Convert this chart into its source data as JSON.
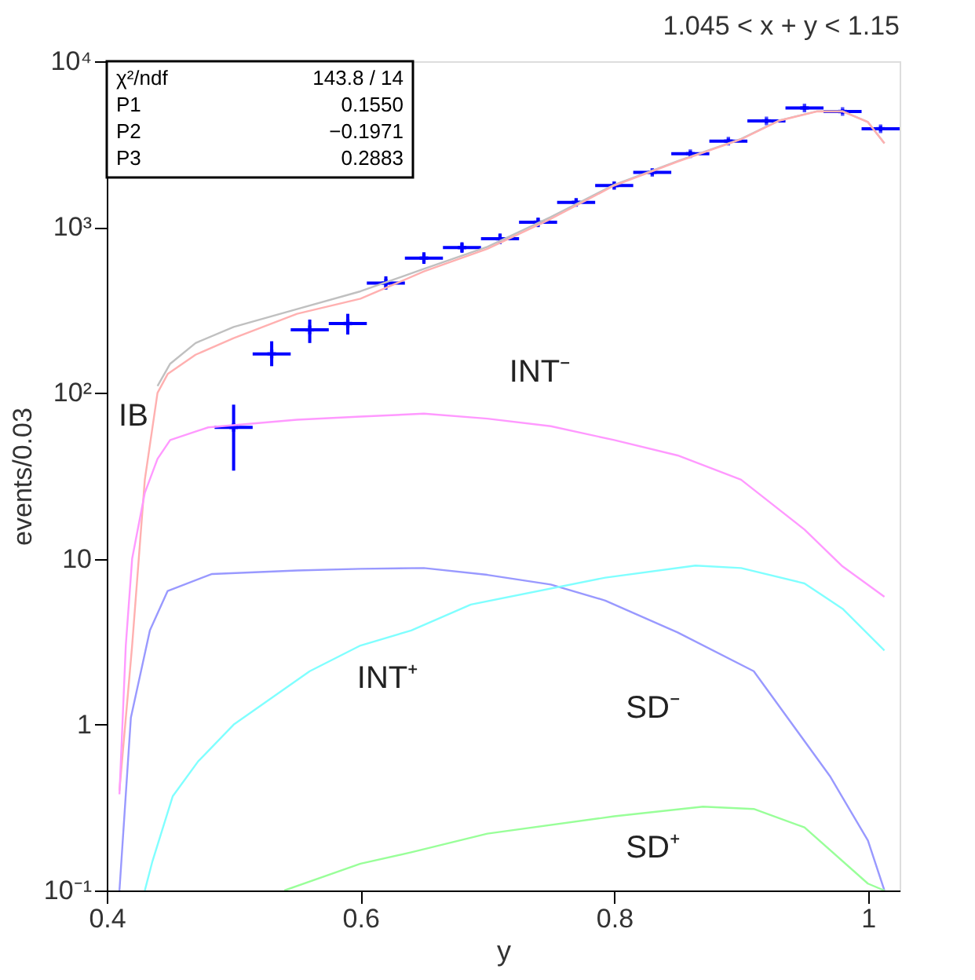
{
  "chart_data": {
    "type": "line",
    "title": "1.045 < x + y < 1.15",
    "xlabel": "y",
    "ylabel": "events/0.03",
    "xlim": [
      0.4,
      1.025
    ],
    "ylim": [
      0.1,
      10000
    ],
    "log": "y",
    "grid": false,
    "xticks": [
      0.4,
      0.6,
      0.8,
      {
        "value": 1.0,
        "label": "1"
      }
    ],
    "yticks": [
      {
        "value": 0.1,
        "label": "10⁻¹"
      },
      1,
      10,
      {
        "value": 100,
        "label": "10²"
      },
      {
        "value": 1000,
        "label": "10³"
      },
      {
        "value": 10000,
        "label": "10⁴"
      }
    ],
    "series": [
      {
        "type": "scatter",
        "marker": "cross",
        "color": "#0000ff",
        "x": [
          0.5,
          0.53,
          0.56,
          0.59,
          0.62,
          0.65,
          0.68,
          0.71,
          0.74,
          0.77,
          0.8,
          0.83,
          0.86,
          0.89,
          0.92,
          0.95,
          0.98,
          1.01
        ],
        "values": [
          62,
          172,
          240,
          262,
          460,
          650,
          753,
          850,
          1070,
          1410,
          1780,
          2140,
          2770,
          3300,
          4370,
          5230,
          4980,
          3920
        ],
        "errors": [
          [
            34,
            85
          ],
          [
            145,
            205
          ],
          [
            200,
            277
          ],
          [
            225,
            300
          ],
          [
            420,
            505
          ],
          [
            600,
            705
          ],
          [
            700,
            810
          ],
          [
            790,
            915
          ],
          [
            1000,
            1140
          ],
          [
            1330,
            1490
          ],
          [
            1700,
            1870
          ],
          [
            2050,
            2240
          ],
          [
            2660,
            2880
          ],
          [
            3180,
            3420
          ],
          [
            4230,
            4510
          ],
          [
            5070,
            5390
          ],
          [
            4820,
            5140
          ],
          [
            3780,
            4060
          ]
        ],
        "xerrors": [
          0.015,
          0.015,
          0.015,
          0.015,
          0.015,
          0.015,
          0.015,
          0.015,
          0.015,
          0.015,
          0.015,
          0.015,
          0.015,
          0.015,
          0.015,
          0.015,
          0.015,
          0.015
        ]
      },
      {
        "color": "#c0c0c0",
        "x": [
          0.44,
          0.45,
          0.47,
          0.5,
          0.55,
          0.6,
          0.65,
          0.7,
          0.75,
          0.8,
          0.85,
          0.9,
          0.93,
          0.96,
          0.98,
          1.0,
          1.013
        ],
        "values": [
          110,
          150,
          200,
          250,
          320,
          410,
          560,
          760,
          1150,
          1800,
          2500,
          3400,
          4400,
          5000,
          5000,
          4300,
          3200
        ]
      },
      {
        "color": "#ffb0b0",
        "x": [
          0.41,
          0.42,
          0.43,
          0.44,
          0.448,
          0.47,
          0.5,
          0.55,
          0.6,
          0.65,
          0.7,
          0.75,
          0.8,
          0.85,
          0.9,
          0.93,
          0.96,
          0.98,
          1.0,
          1.013
        ],
        "values": [
          0.4,
          3,
          30,
          100,
          130,
          170,
          214,
          300,
          370,
          540,
          740,
          1120,
          1780,
          2480,
          3380,
          4380,
          4980,
          4980,
          4300,
          3200
        ]
      },
      {
        "color": "#ff99ff",
        "x": [
          0.41,
          0.415,
          0.42,
          0.43,
          0.44,
          0.45,
          0.48,
          0.55,
          0.6,
          0.65,
          0.7,
          0.75,
          0.8,
          0.85,
          0.9,
          0.95,
          0.98,
          1.013
        ],
        "values": [
          0.38,
          3,
          10,
          25,
          40,
          52,
          62,
          69,
          72,
          75,
          70,
          63,
          52,
          42,
          30,
          15,
          9,
          5.9
        ]
      },
      {
        "color": "#9999ff",
        "x": [
          0.41,
          0.419,
          0.434,
          0.448,
          0.483,
          0.55,
          0.6,
          0.65,
          0.7,
          0.75,
          0.793,
          0.85,
          0.91,
          0.97,
          1.0,
          1.013
        ],
        "values": [
          0.1,
          1.1,
          3.7,
          6.4,
          8.1,
          8.5,
          8.7,
          8.8,
          8.0,
          7.0,
          5.6,
          3.6,
          2.1,
          0.49,
          0.2,
          0.1
        ]
      },
      {
        "color": "#80ffff",
        "x": [
          0.43,
          0.436,
          0.452,
          0.472,
          0.5,
          0.56,
          0.6,
          0.64,
          0.687,
          0.793,
          0.864,
          0.9,
          0.95,
          0.98,
          1.013
        ],
        "values": [
          0.1,
          0.15,
          0.37,
          0.6,
          1.0,
          2.1,
          3.0,
          3.7,
          5.3,
          7.7,
          9.1,
          8.8,
          7.1,
          5.0,
          2.8
        ]
      },
      {
        "color": "#99ff99",
        "x": [
          0.54,
          0.6,
          0.64,
          0.7,
          0.8,
          0.87,
          0.91,
          0.95,
          1.0,
          1.013
        ],
        "values": [
          0.1,
          0.145,
          0.17,
          0.22,
          0.28,
          0.32,
          0.31,
          0.24,
          0.11,
          0.1
        ]
      }
    ],
    "annotations": [
      "χ²/ndf    143.8   /   14",
      "P1    0.1550",
      "P2    −0.1971",
      "P3    0.2883",
      "IB",
      "INT⁻",
      "INT⁺",
      "SD⁻",
      "SD⁺"
    ]
  }
}
